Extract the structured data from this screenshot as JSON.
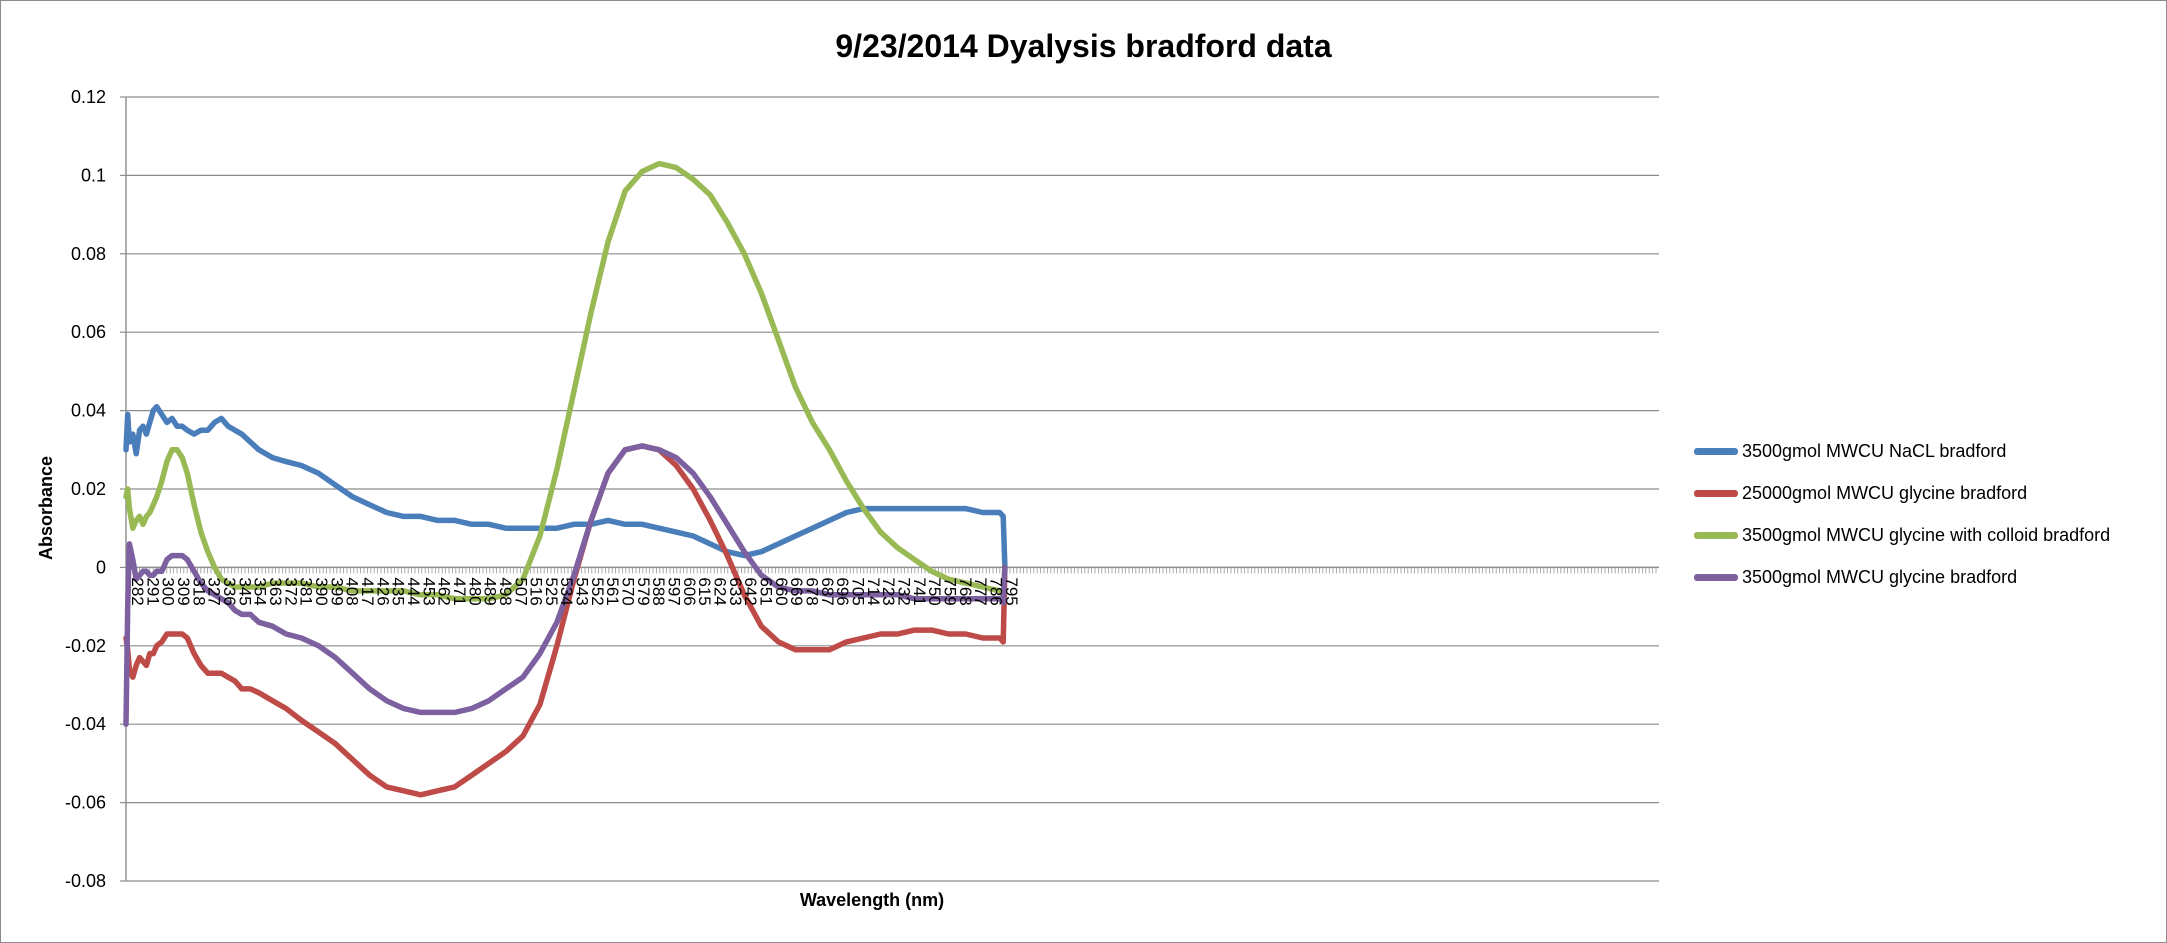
{
  "chart_data": {
    "type": "line",
    "title": "9/23/2014 Dyalysis bradford data",
    "xlabel": "Wavelength (nm)",
    "ylabel": "Absorbance",
    "ylim": [
      -0.08,
      0.12
    ],
    "yticks": [
      "0.12",
      "0.1",
      "0.08",
      "0.06",
      "0.04",
      "0.02",
      "0",
      "-0.02",
      "-0.04",
      "-0.06",
      "-0.08"
    ],
    "xlim": [
      282,
      800
    ],
    "x_axis_extent": 900,
    "xticks": [
      "282",
      "291",
      "300",
      "309",
      "318",
      "327",
      "336",
      "345",
      "354",
      "363",
      "372",
      "381",
      "390",
      "399",
      "408",
      "417",
      "426",
      "435",
      "444",
      "453",
      "462",
      "471",
      "480",
      "489",
      "498",
      "507",
      "516",
      "525",
      "534",
      "543",
      "552",
      "561",
      "570",
      "579",
      "588",
      "597",
      "606",
      "615",
      "624",
      "633",
      "642",
      "651",
      "660",
      "669",
      "678",
      "687",
      "696",
      "705",
      "714",
      "723",
      "732",
      "741",
      "750",
      "759",
      "768",
      "777",
      "786",
      "795"
    ],
    "grid": true,
    "legend_position": "right",
    "series": [
      {
        "name": "3500gmol MWCU NaCL bradford",
        "color": "#4a7ebb",
        "x": [
          282,
          283,
          284,
          286,
          288,
          290,
          292,
          294,
          296,
          298,
          300,
          303,
          306,
          309,
          312,
          315,
          318,
          322,
          326,
          330,
          334,
          338,
          342,
          346,
          350,
          355,
          360,
          368,
          376,
          385,
          395,
          405,
          415,
          425,
          435,
          445,
          455,
          465,
          475,
          485,
          495,
          505,
          515,
          525,
          535,
          545,
          555,
          565,
          575,
          585,
          595,
          605,
          615,
          625,
          635,
          645,
          655,
          665,
          675,
          685,
          695,
          705,
          715,
          725,
          735,
          745,
          755,
          765,
          775,
          785,
          795,
          797,
          798
        ],
        "y": [
          0.03,
          0.039,
          0.032,
          0.034,
          0.029,
          0.035,
          0.036,
          0.034,
          0.037,
          0.04,
          0.041,
          0.039,
          0.037,
          0.038,
          0.036,
          0.036,
          0.035,
          0.034,
          0.035,
          0.035,
          0.037,
          0.038,
          0.036,
          0.035,
          0.034,
          0.032,
          0.03,
          0.028,
          0.027,
          0.026,
          0.024,
          0.021,
          0.018,
          0.016,
          0.014,
          0.013,
          0.013,
          0.012,
          0.012,
          0.011,
          0.011,
          0.01,
          0.01,
          0.01,
          0.01,
          0.011,
          0.011,
          0.012,
          0.011,
          0.011,
          0.01,
          0.009,
          0.008,
          0.006,
          0.004,
          0.003,
          0.004,
          0.006,
          0.008,
          0.01,
          0.012,
          0.014,
          0.015,
          0.015,
          0.015,
          0.015,
          0.015,
          0.015,
          0.015,
          0.014,
          0.014,
          0.013,
          0.0
        ]
      },
      {
        "name": "25000gmol MWCU glycine bradford",
        "color": "#be4b48",
        "x": [
          282,
          283,
          284,
          286,
          288,
          290,
          292,
          294,
          296,
          298,
          300,
          303,
          306,
          309,
          312,
          315,
          318,
          322,
          326,
          330,
          334,
          338,
          342,
          346,
          350,
          355,
          360,
          368,
          376,
          385,
          395,
          405,
          415,
          425,
          435,
          445,
          455,
          465,
          475,
          485,
          495,
          505,
          515,
          525,
          535,
          545,
          555,
          565,
          575,
          585,
          595,
          605,
          615,
          625,
          635,
          645,
          655,
          665,
          675,
          685,
          695,
          705,
          715,
          725,
          735,
          745,
          755,
          765,
          775,
          785,
          795,
          797,
          798
        ],
        "y": [
          -0.018,
          -0.021,
          -0.026,
          -0.028,
          -0.025,
          -0.023,
          -0.024,
          -0.025,
          -0.022,
          -0.022,
          -0.02,
          -0.019,
          -0.017,
          -0.017,
          -0.017,
          -0.017,
          -0.018,
          -0.022,
          -0.025,
          -0.027,
          -0.027,
          -0.027,
          -0.028,
          -0.029,
          -0.031,
          -0.031,
          -0.032,
          -0.034,
          -0.036,
          -0.039,
          -0.042,
          -0.045,
          -0.049,
          -0.053,
          -0.056,
          -0.057,
          -0.058,
          -0.057,
          -0.056,
          -0.053,
          -0.05,
          -0.047,
          -0.043,
          -0.035,
          -0.02,
          -0.003,
          0.012,
          0.024,
          0.03,
          0.031,
          0.03,
          0.026,
          0.02,
          0.012,
          0.003,
          -0.007,
          -0.015,
          -0.019,
          -0.021,
          -0.021,
          -0.021,
          -0.019,
          -0.018,
          -0.017,
          -0.017,
          -0.016,
          -0.016,
          -0.017,
          -0.017,
          -0.018,
          -0.018,
          -0.019,
          0.0
        ]
      },
      {
        "name": "3500gmol MWCU glycine with colloid bradford",
        "color": "#98b954",
        "x": [
          282,
          283,
          284,
          286,
          288,
          290,
          292,
          294,
          296,
          298,
          300,
          303,
          306,
          309,
          312,
          315,
          318,
          322,
          326,
          330,
          334,
          338,
          342,
          346,
          350,
          355,
          360,
          368,
          376,
          385,
          395,
          405,
          415,
          425,
          435,
          445,
          455,
          465,
          475,
          485,
          495,
          505,
          515,
          525,
          535,
          545,
          555,
          565,
          575,
          585,
          595,
          605,
          615,
          625,
          635,
          645,
          655,
          665,
          675,
          685,
          695,
          705,
          715,
          725,
          735,
          745,
          755,
          765,
          775,
          785,
          795,
          797,
          798
        ],
        "y": [
          0.018,
          0.02,
          0.015,
          0.01,
          0.012,
          0.013,
          0.011,
          0.013,
          0.014,
          0.016,
          0.018,
          0.022,
          0.027,
          0.03,
          0.03,
          0.028,
          0.024,
          0.016,
          0.009,
          0.004,
          0.0,
          -0.003,
          -0.004,
          -0.005,
          -0.005,
          -0.005,
          -0.005,
          -0.004,
          -0.004,
          -0.004,
          -0.005,
          -0.005,
          -0.006,
          -0.006,
          -0.006,
          -0.006,
          -0.007,
          -0.007,
          -0.008,
          -0.008,
          -0.008,
          -0.007,
          -0.003,
          0.008,
          0.025,
          0.045,
          0.065,
          0.083,
          0.096,
          0.101,
          0.103,
          0.102,
          0.099,
          0.095,
          0.088,
          0.08,
          0.07,
          0.058,
          0.046,
          0.037,
          0.03,
          0.022,
          0.015,
          0.009,
          0.005,
          0.002,
          -0.001,
          -0.003,
          -0.004,
          -0.005,
          -0.006,
          -0.007,
          0.0
        ]
      },
      {
        "name": "3500gmol MWCU glycine bradford",
        "color": "#7d60a0",
        "x": [
          282,
          283,
          284,
          286,
          288,
          290,
          292,
          294,
          296,
          298,
          300,
          303,
          306,
          309,
          312,
          315,
          318,
          322,
          326,
          330,
          334,
          338,
          342,
          346,
          350,
          355,
          360,
          368,
          376,
          385,
          395,
          405,
          415,
          425,
          435,
          445,
          455,
          465,
          475,
          485,
          495,
          505,
          515,
          525,
          535,
          545,
          555,
          565,
          575,
          585,
          595,
          605,
          615,
          625,
          635,
          645,
          655,
          665,
          675,
          685,
          695,
          705,
          715,
          725,
          735,
          745,
          755,
          765,
          775,
          785,
          795,
          797,
          798
        ],
        "y": [
          -0.04,
          -0.01,
          0.006,
          0.002,
          -0.003,
          -0.002,
          -0.001,
          -0.001,
          -0.002,
          -0.002,
          -0.001,
          -0.001,
          0.002,
          0.003,
          0.003,
          0.003,
          0.002,
          -0.001,
          -0.004,
          -0.006,
          -0.007,
          -0.008,
          -0.009,
          -0.011,
          -0.012,
          -0.012,
          -0.014,
          -0.015,
          -0.017,
          -0.018,
          -0.02,
          -0.023,
          -0.027,
          -0.031,
          -0.034,
          -0.036,
          -0.037,
          -0.037,
          -0.037,
          -0.036,
          -0.034,
          -0.031,
          -0.028,
          -0.022,
          -0.014,
          -0.002,
          0.012,
          0.024,
          0.03,
          0.031,
          0.03,
          0.028,
          0.024,
          0.018,
          0.011,
          0.004,
          -0.002,
          -0.005,
          -0.006,
          -0.006,
          -0.007,
          -0.007,
          -0.007,
          -0.007,
          -0.007,
          -0.008,
          -0.008,
          -0.008,
          -0.008,
          -0.008,
          -0.008,
          -0.009,
          0.0
        ]
      }
    ]
  }
}
